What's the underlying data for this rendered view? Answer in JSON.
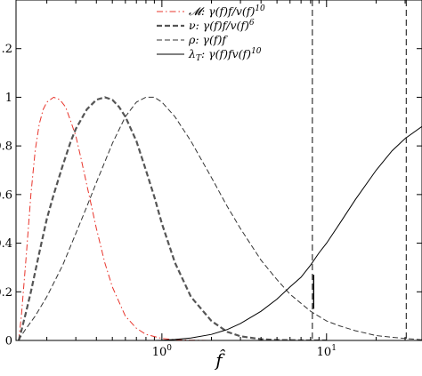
{
  "chart_data": {
    "type": "line",
    "xlabel": "f̂",
    "ylabel": "",
    "xscale": "log",
    "xlim": [
      0.13,
      38
    ],
    "ylim": [
      0,
      1.4
    ],
    "grid": false,
    "legend_position": "top-center",
    "y_ticks": [
      {
        "value": 0,
        "label": "0"
      },
      {
        "value": 0.2,
        "label": "0.2"
      },
      {
        "value": 0.4,
        "label": "0.4"
      },
      {
        "value": 0.6,
        "label": "0.6"
      },
      {
        "value": 0.8,
        "label": "0.8"
      },
      {
        "value": 1.0,
        "label": "1"
      },
      {
        "value": 1.2,
        "label": "1.2"
      }
    ],
    "x_major_ticks": [
      {
        "value": 1,
        "label_base": "10",
        "label_exp": "0"
      },
      {
        "value": 10,
        "label_base": "10",
        "label_exp": "1"
      }
    ],
    "x_minor_ticks": [
      0.2,
      0.3,
      0.4,
      0.5,
      0.6,
      0.7,
      0.8,
      0.9,
      2,
      3,
      4,
      5,
      6,
      7,
      8,
      9,
      20,
      30
    ],
    "series": [
      {
        "name": "𝓜: γ(f)f/v(f)¹⁰",
        "legend_parts": {
          "prefix": "𝓜: γ(f)f/v(f)",
          "sup": "10"
        },
        "color": "#e8342b",
        "dash": "7,3,1.5,3",
        "width": 1,
        "x": [
          0.135,
          0.14,
          0.15,
          0.16,
          0.17,
          0.18,
          0.19,
          0.2,
          0.22,
          0.24,
          0.26,
          0.28,
          0.3,
          0.32,
          0.35,
          0.4,
          0.45,
          0.5,
          0.6,
          0.7,
          0.8,
          1.0,
          1.2,
          1.5,
          2.0,
          2.5,
          3.0,
          4.0,
          5.0,
          6.0
        ],
        "y": [
          0.0,
          0.1,
          0.35,
          0.6,
          0.78,
          0.89,
          0.95,
          0.98,
          1.0,
          0.99,
          0.96,
          0.9,
          0.84,
          0.76,
          0.64,
          0.46,
          0.32,
          0.22,
          0.1,
          0.05,
          0.025,
          0.008,
          0.003,
          0.001,
          0.0,
          0.0,
          0.0,
          0.0,
          0.0,
          0.0
        ]
      },
      {
        "name": "ν: γ(f)f/v(f)⁶",
        "legend_parts": {
          "prefix": "ν: γ(f)f/v(f)",
          "sup": "6"
        },
        "color": "#555555",
        "dash": "6,3",
        "width": 2.2,
        "x": [
          0.135,
          0.14,
          0.15,
          0.16,
          0.18,
          0.2,
          0.22,
          0.25,
          0.28,
          0.3,
          0.35,
          0.4,
          0.45,
          0.5,
          0.55,
          0.6,
          0.7,
          0.8,
          0.9,
          1.0,
          1.2,
          1.5,
          2.0,
          2.5,
          3.0,
          4.0,
          5.0,
          6.0,
          8.0,
          10.0
        ],
        "y": [
          0.0,
          0.04,
          0.12,
          0.2,
          0.36,
          0.5,
          0.6,
          0.72,
          0.82,
          0.87,
          0.95,
          0.99,
          1.0,
          0.99,
          0.96,
          0.92,
          0.82,
          0.7,
          0.59,
          0.48,
          0.32,
          0.18,
          0.08,
          0.035,
          0.017,
          0.005,
          0.002,
          0.001,
          0.0,
          0.0
        ]
      },
      {
        "name": "ρ: γ(f)f",
        "legend_parts": {
          "prefix": "ρ: γ(f)f",
          "sup": ""
        },
        "color": "#333333",
        "dash": "6,3",
        "width": 1,
        "x": [
          0.135,
          0.14,
          0.15,
          0.17,
          0.2,
          0.25,
          0.3,
          0.35,
          0.4,
          0.5,
          0.6,
          0.7,
          0.8,
          0.9,
          1.0,
          1.2,
          1.5,
          2.0,
          2.5,
          3.0,
          4.0,
          5.0,
          6.0,
          8.0,
          10.0,
          12.0,
          15.0,
          20.0,
          25.0,
          30.0,
          38.0
        ],
        "y": [
          0.0,
          0.02,
          0.05,
          0.1,
          0.18,
          0.31,
          0.44,
          0.55,
          0.65,
          0.81,
          0.92,
          0.98,
          1.0,
          1.0,
          0.98,
          0.92,
          0.82,
          0.67,
          0.55,
          0.46,
          0.33,
          0.25,
          0.19,
          0.12,
          0.08,
          0.06,
          0.04,
          0.02,
          0.013,
          0.008,
          0.003
        ]
      },
      {
        "name": "λ_T: γ(f)fv(f)¹⁰",
        "legend_parts": {
          "prefix": "λ",
          "sub": "T",
          "suffix": ": γ(f)fv(f)",
          "sup": "10"
        },
        "color": "#000000",
        "dash": "",
        "width": 1,
        "x": [
          0.9,
          1.0,
          1.2,
          1.5,
          2.0,
          2.5,
          3.0,
          4.0,
          5.0,
          6.0,
          7.0,
          8.0,
          9.0,
          10.0,
          12.0,
          15.0,
          20.0,
          25.0,
          30.0,
          38.0
        ],
        "y": [
          0.0,
          0.001,
          0.004,
          0.01,
          0.025,
          0.045,
          0.07,
          0.12,
          0.17,
          0.22,
          0.26,
          0.31,
          0.36,
          0.4,
          0.48,
          0.58,
          0.7,
          0.78,
          0.83,
          0.88
        ]
      }
    ],
    "vertical_lines": [
      {
        "x": 8.2,
        "style": "dashed",
        "color": "#333333"
      },
      {
        "x": 30.5,
        "style": "dashed",
        "color": "#333333"
      }
    ],
    "short_vertical_lines": [
      {
        "x": 8.35,
        "y_from": 0.13,
        "y_to": 0.27,
        "color": "#000000"
      }
    ]
  }
}
